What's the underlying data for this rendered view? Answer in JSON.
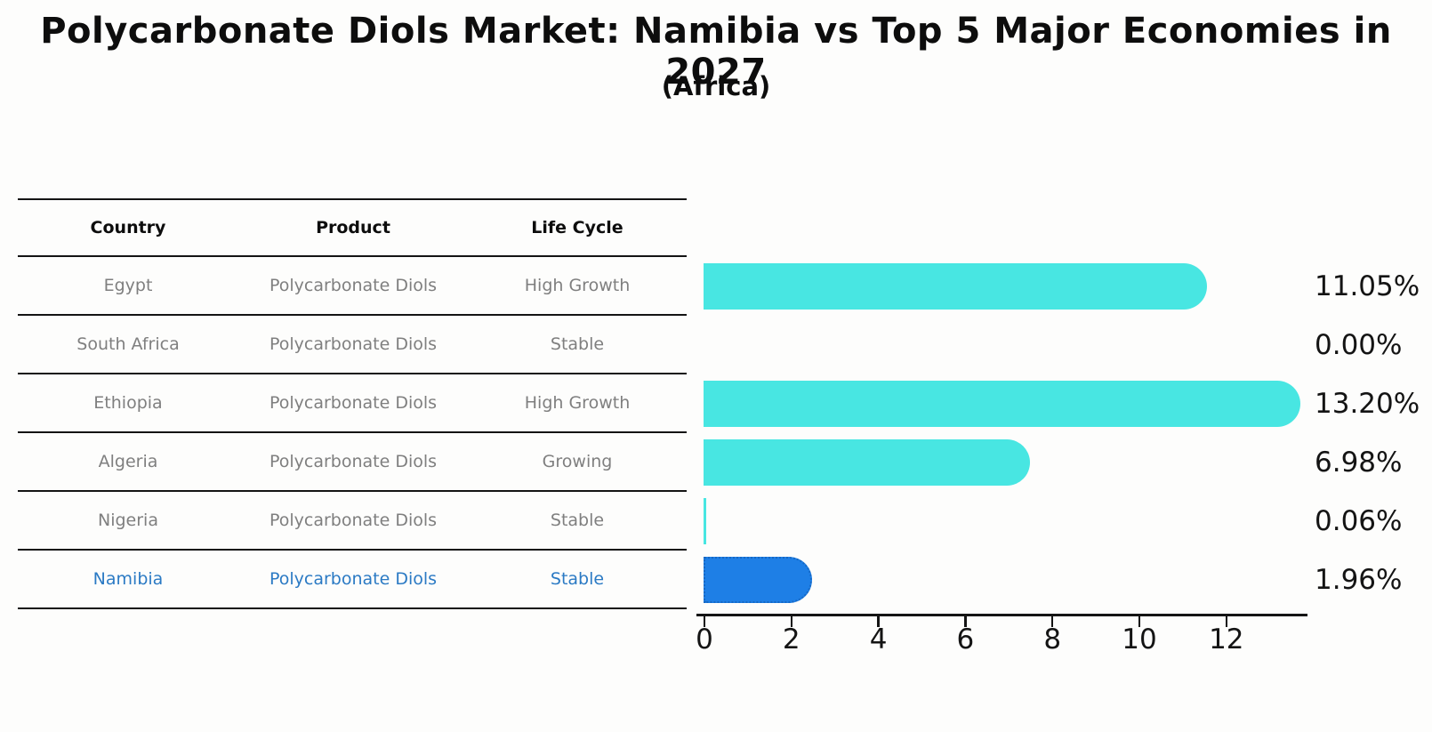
{
  "title": "Polycarbonate Diols Market: Namibia vs Top 5 Major Economies in 2027",
  "subtitle": "(Africa)",
  "table": {
    "headers": [
      "Country",
      "Product",
      "Life Cycle"
    ],
    "rows": [
      {
        "country": "Egypt",
        "product": "Polycarbonate Diols",
        "life_cycle": "High Growth",
        "highlight": false
      },
      {
        "country": "South Africa",
        "product": "Polycarbonate Diols",
        "life_cycle": "Stable",
        "highlight": false
      },
      {
        "country": "Ethiopia",
        "product": "Polycarbonate Diols",
        "life_cycle": "High Growth",
        "highlight": false
      },
      {
        "country": "Algeria",
        "product": "Polycarbonate Diols",
        "life_cycle": "Growing",
        "highlight": false
      },
      {
        "country": "Nigeria",
        "product": "Polycarbonate Diols",
        "life_cycle": "Stable",
        "highlight": false
      },
      {
        "country": "Namibia",
        "product": "Polycarbonate Diols",
        "life_cycle": "Stable",
        "highlight": true
      }
    ]
  },
  "chart_data": {
    "type": "bar",
    "orientation": "horizontal",
    "title": "Polycarbonate Diols Market: Namibia vs Top 5 Major Economies in 2027 (Africa)",
    "categories": [
      "Egypt",
      "South Africa",
      "Ethiopia",
      "Algeria",
      "Nigeria",
      "Namibia"
    ],
    "values": [
      11.05,
      0.0,
      13.2,
      6.98,
      0.06,
      1.96
    ],
    "value_labels": [
      "11.05%",
      "0.00%",
      "13.20%",
      "6.98%",
      "0.06%",
      "1.96%"
    ],
    "highlight_index": 5,
    "x_ticks": [
      0,
      2,
      4,
      6,
      8,
      10,
      12
    ],
    "x_tick_labels": [
      "0",
      "2",
      "4",
      "6",
      "8",
      "10",
      "12"
    ],
    "xlim": [
      0,
      13.87
    ],
    "xlabel": "",
    "ylabel": "",
    "grid": false,
    "legend": false,
    "colors": {
      "bar": "#48e6e2",
      "highlight_bar": "#1e7fe6",
      "highlight_bar_border": "#1668c4",
      "axis": "#141414",
      "table_text": "#7f7f7f",
      "highlight_text": "#2b7ac4",
      "value_label_text": "#141414"
    }
  }
}
